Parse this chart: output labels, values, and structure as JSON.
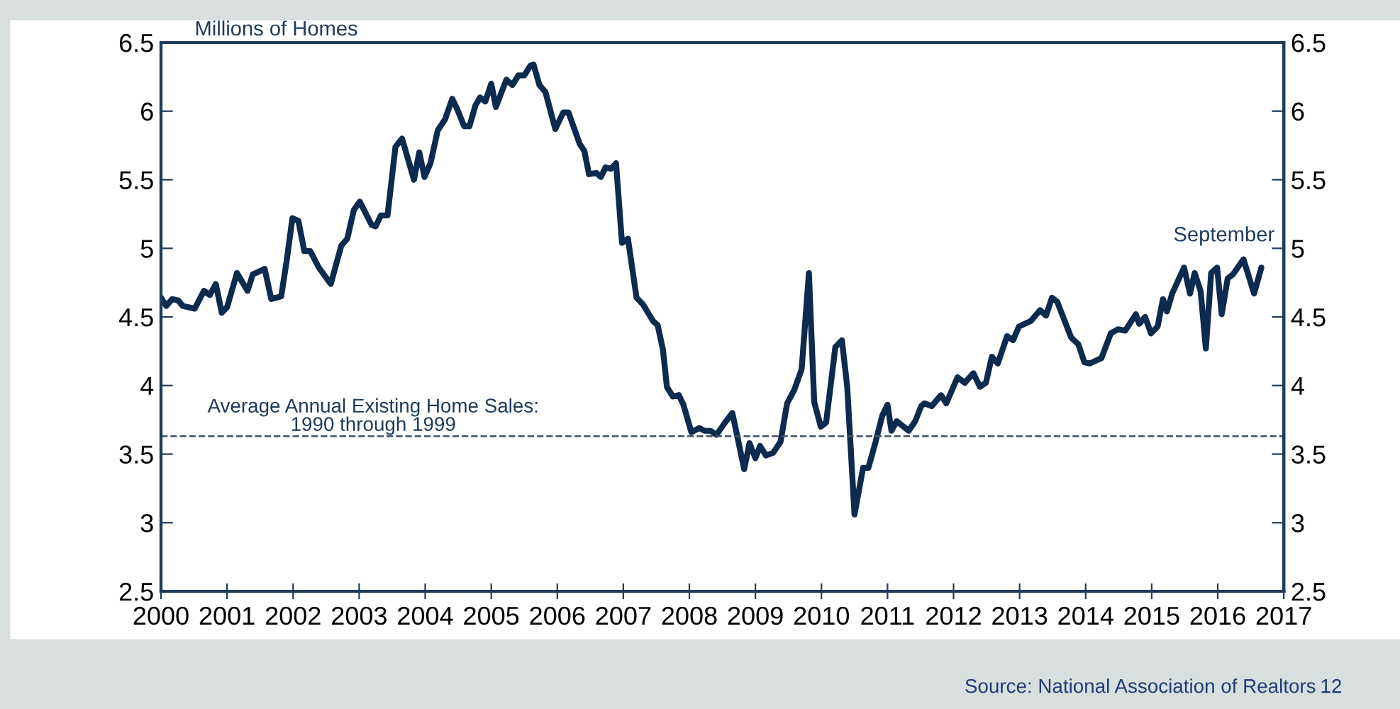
{
  "chart_data": {
    "type": "line",
    "ylabel": "Millions of Homes",
    "x": [
      2000.0,
      2000.08,
      2000.17,
      2000.26,
      2000.33,
      2000.51,
      2000.65,
      2000.74,
      2000.83,
      2000.92,
      2001.0,
      2001.15,
      2001.31,
      2001.39,
      2001.57,
      2001.67,
      2001.82,
      2001.9,
      2001.99,
      2002.08,
      2002.17,
      2002.26,
      2002.39,
      2002.57,
      2002.73,
      2002.82,
      2002.92,
      2003.01,
      2003.19,
      2003.25,
      2003.33,
      2003.43,
      2003.55,
      2003.65,
      2003.83,
      2003.91,
      2003.99,
      2004.08,
      2004.19,
      2004.3,
      2004.41,
      2004.48,
      2004.59,
      2004.67,
      2004.76,
      2004.83,
      2004.91,
      2005.0,
      2005.07,
      2005.23,
      2005.32,
      2005.41,
      2005.5,
      2005.59,
      2005.64,
      2005.73,
      2005.82,
      2005.97,
      2006.09,
      2006.17,
      2006.34,
      2006.41,
      2006.48,
      2006.59,
      2006.66,
      2006.73,
      2006.81,
      2006.89,
      2006.98,
      2007.07,
      2007.2,
      2007.3,
      2007.45,
      2007.52,
      2007.6,
      2007.66,
      2007.75,
      2007.84,
      2007.91,
      2008.03,
      2008.15,
      2008.23,
      2008.32,
      2008.41,
      2008.54,
      2008.65,
      2008.73,
      2008.83,
      2008.91,
      2009.0,
      2009.07,
      2009.16,
      2009.27,
      2009.38,
      2009.48,
      2009.59,
      2009.7,
      2009.81,
      2009.89,
      2009.99,
      2010.07,
      2010.21,
      2010.31,
      2010.39,
      2010.5,
      2010.63,
      2010.71,
      2010.82,
      2010.92,
      2011.0,
      2011.06,
      2011.14,
      2011.32,
      2011.42,
      2011.51,
      2011.56,
      2011.67,
      2011.81,
      2011.89,
      2012.06,
      2012.17,
      2012.3,
      2012.4,
      2012.49,
      2012.58,
      2012.67,
      2012.81,
      2012.9,
      2012.99,
      2013.17,
      2013.31,
      2013.4,
      2013.49,
      2013.57,
      2013.78,
      2013.89,
      2013.98,
      2014.06,
      2014.24,
      2014.38,
      2014.49,
      2014.6,
      2014.76,
      2014.81,
      2014.9,
      2014.99,
      2015.09,
      2015.17,
      2015.23,
      2015.31,
      2015.49,
      2015.58,
      2015.65,
      2015.74,
      2015.82,
      2015.9,
      2015.99,
      2016.06,
      2016.15,
      2016.23,
      2016.39,
      2016.55,
      2016.66
    ],
    "series": [
      {
        "color": "#0d2a4f",
        "values": [
          4.64,
          4.58,
          4.63,
          4.62,
          4.58,
          4.56,
          4.69,
          4.66,
          4.74,
          4.53,
          4.57,
          4.82,
          4.69,
          4.81,
          4.85,
          4.63,
          4.65,
          4.9,
          5.22,
          5.2,
          4.98,
          4.98,
          4.86,
          4.74,
          5.02,
          5.07,
          5.28,
          5.34,
          5.17,
          5.16,
          5.24,
          5.24,
          5.74,
          5.8,
          5.5,
          5.7,
          5.52,
          5.62,
          5.86,
          5.94,
          6.09,
          6.02,
          5.89,
          5.89,
          6.04,
          6.1,
          6.07,
          6.2,
          6.03,
          6.23,
          6.19,
          6.26,
          6.26,
          6.33,
          6.34,
          6.19,
          6.14,
          5.87,
          5.99,
          5.99,
          5.76,
          5.71,
          5.54,
          5.55,
          5.52,
          5.59,
          5.58,
          5.62,
          5.04,
          5.07,
          4.64,
          4.59,
          4.47,
          4.44,
          4.26,
          3.99,
          3.92,
          3.93,
          3.86,
          3.66,
          3.69,
          3.67,
          3.67,
          3.64,
          3.73,
          3.8,
          3.62,
          3.39,
          3.58,
          3.47,
          3.56,
          3.49,
          3.51,
          3.59,
          3.87,
          3.97,
          4.12,
          4.82,
          3.88,
          3.7,
          3.73,
          4.28,
          4.33,
          3.99,
          3.06,
          3.4,
          3.4,
          3.59,
          3.78,
          3.86,
          3.67,
          3.74,
          3.67,
          3.74,
          3.85,
          3.87,
          3.85,
          3.93,
          3.87,
          4.06,
          4.02,
          4.09,
          3.99,
          4.02,
          4.21,
          4.16,
          4.36,
          4.33,
          4.43,
          4.47,
          4.55,
          4.51,
          4.64,
          4.61,
          4.35,
          4.3,
          4.17,
          4.16,
          4.2,
          4.38,
          4.41,
          4.4,
          4.52,
          4.45,
          4.5,
          4.38,
          4.43,
          4.63,
          4.54,
          4.67,
          4.86,
          4.67,
          4.82,
          4.69,
          4.27,
          4.82,
          4.86,
          4.52,
          4.78,
          4.81,
          4.92,
          4.67,
          4.86
        ]
      }
    ],
    "xlim": [
      2000,
      2017
    ],
    "xticks": [
      2000,
      2001,
      2002,
      2003,
      2004,
      2005,
      2006,
      2007,
      2008,
      2009,
      2010,
      2011,
      2012,
      2013,
      2014,
      2015,
      2016,
      2017
    ],
    "ylim": [
      2.5,
      6.5
    ],
    "yticks": [
      2.5,
      {
        "value": 3,
        "label": "3"
      },
      3.5,
      {
        "value": 4,
        "label": "4"
      },
      4.5,
      {
        "value": 5,
        "label": "5"
      },
      5.5,
      {
        "value": 6,
        "label": "6"
      },
      6.5
    ],
    "y2lim": [
      2.5,
      6.5
    ],
    "y2ticks": [
      2.5,
      {
        "value": 3,
        "label": "3"
      },
      3.5,
      {
        "value": 4,
        "label": "4"
      },
      4.5,
      {
        "value": 5,
        "label": "5"
      },
      5.5,
      {
        "value": 6,
        "label": "6"
      },
      6.5
    ],
    "ref_lines": [
      {
        "axis": "y",
        "value": 3.63,
        "color": "#44546a",
        "line_style": "dashed"
      }
    ],
    "annotations": [
      {
        "text": "September",
        "x": 2016.66,
        "y": 4.86
      },
      "Source: National Association of Realtors",
      "12",
      "Average Annual Existing Home Sales:\n1990 through 1999"
    ],
    "grid": false,
    "legend": false,
    "marker": "none",
    "line_style": "solid"
  }
}
